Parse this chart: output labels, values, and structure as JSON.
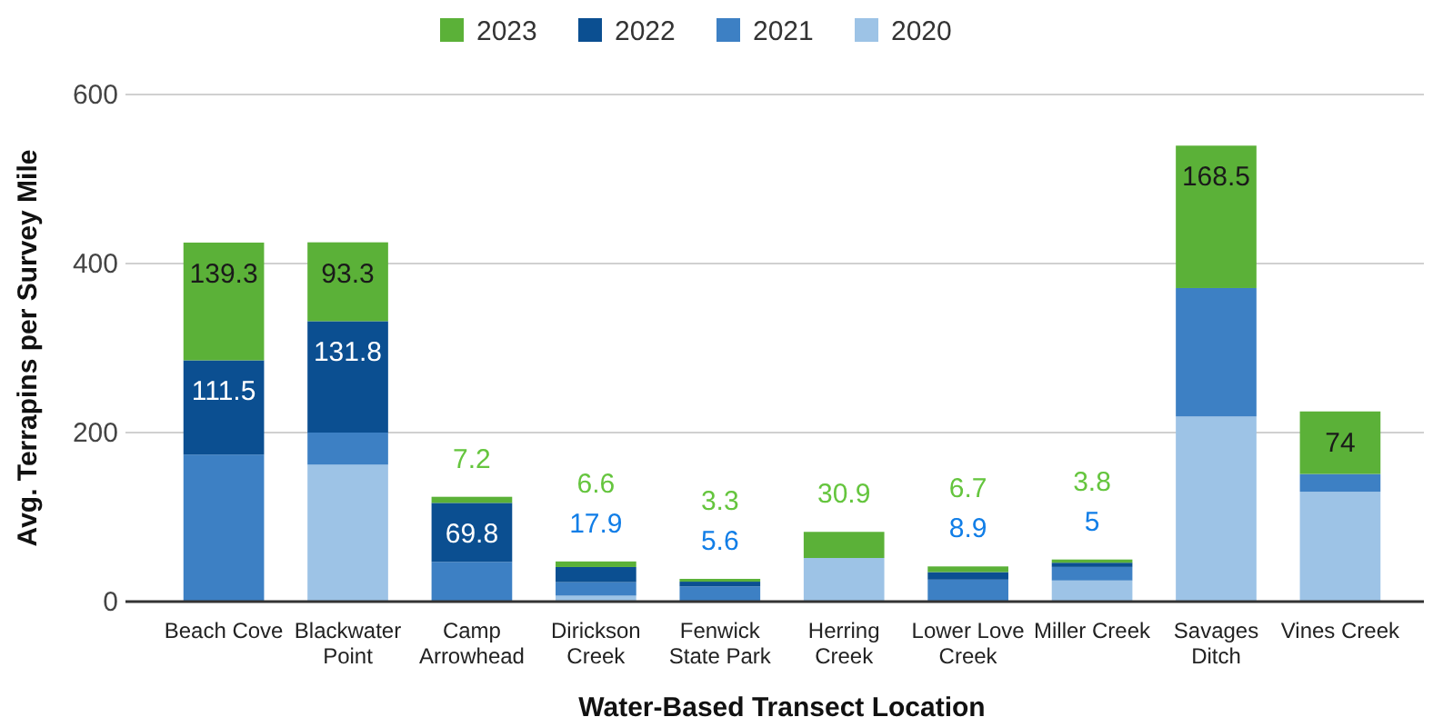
{
  "chart_data": {
    "type": "bar",
    "stacked": true,
    "xlabel": "Water-Based Transect Location",
    "ylabel": "Avg. Terrapins per Survey Mile",
    "categories": [
      "Beach Cove",
      "Blackwater Point",
      "Camp Arrowhead",
      "Dirickson Creek",
      "Fenwick State Park",
      "Herring Creek",
      "Lower Love Creek",
      "Miller Creek",
      "Savages Ditch",
      "Vines Creek"
    ],
    "series": [
      {
        "name": "2020",
        "color": "#9dc3e6",
        "values": [
          0,
          162,
          0,
          7,
          0,
          51.6,
          0,
          25,
          219,
          130
        ]
      },
      {
        "name": "2021",
        "color": "#3d80c4",
        "values": [
          174,
          38,
          47,
          16,
          18,
          0,
          26,
          16,
          152,
          21
        ]
      },
      {
        "name": "2022",
        "color": "#0b4f91",
        "values": [
          111.5,
          131.8,
          69.8,
          17.9,
          5.6,
          0,
          8.9,
          5,
          0,
          0
        ],
        "value_labels": [
          "111.5",
          "131.8",
          "69.8",
          "17.9",
          "5.6",
          null,
          "8.9",
          "5",
          null,
          null
        ]
      },
      {
        "name": "2023",
        "color": "#5bb138",
        "values": [
          139.3,
          93.3,
          7.2,
          6.6,
          3.3,
          30.9,
          6.7,
          3.8,
          168.5,
          74
        ],
        "value_labels": [
          "139.3",
          "93.3",
          "7.2",
          "6.6",
          "3.3",
          "30.9",
          "6.7",
          "3.8",
          "168.5",
          "74"
        ]
      }
    ],
    "ylim": [
      0,
      600
    ],
    "yticks": [
      0,
      200,
      400,
      600
    ],
    "grid": "y",
    "legend": "top"
  }
}
